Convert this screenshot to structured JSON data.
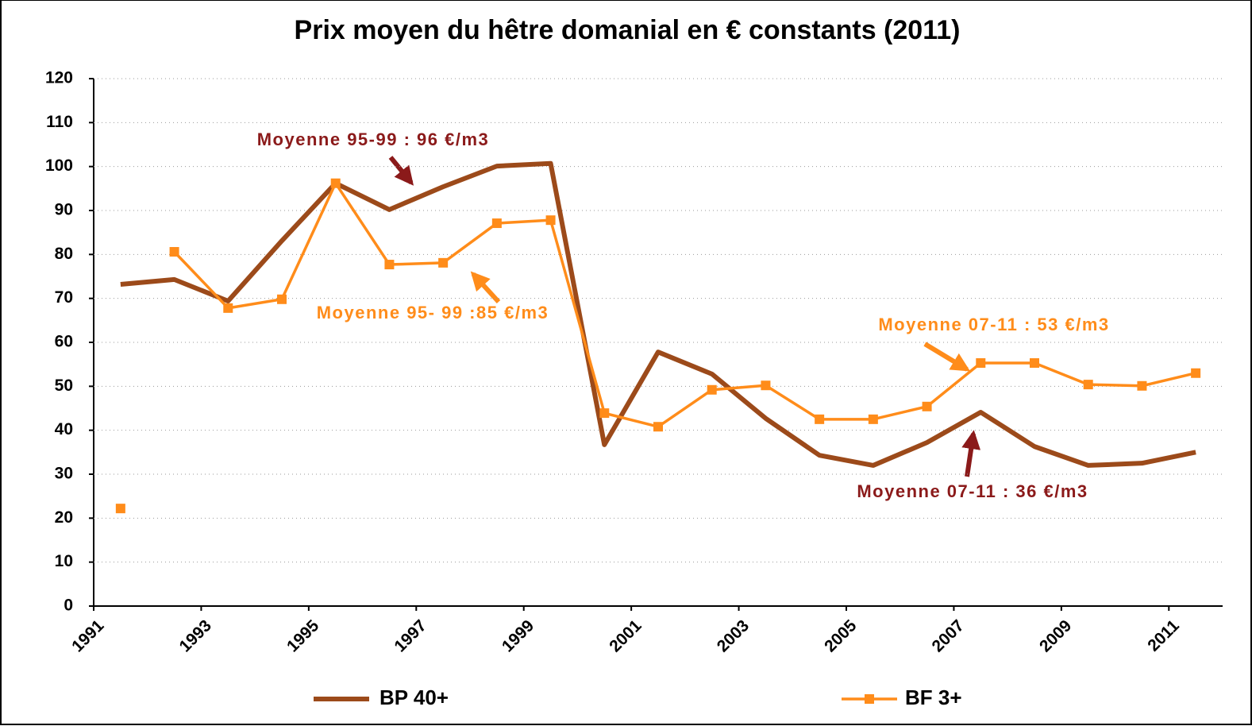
{
  "chart_data": {
    "type": "line",
    "title": "Prix moyen du hêtre domanial en € constants (2011)",
    "x": [
      1991,
      1992,
      1993,
      1994,
      1995,
      1996,
      1997,
      1998,
      1999,
      2000,
      2001,
      2002,
      2003,
      2004,
      2005,
      2006,
      2007,
      2008,
      2009,
      2010,
      2011
    ],
    "xlim": [
      1991,
      2012
    ],
    "xticks": [
      1991,
      1993,
      1995,
      1997,
      1999,
      2001,
      2003,
      2005,
      2007,
      2009,
      2011
    ],
    "ylim": [
      0,
      120
    ],
    "yticks": [
      0,
      10,
      20,
      30,
      40,
      50,
      60,
      70,
      80,
      90,
      100,
      110,
      120
    ],
    "grid": true,
    "series": [
      {
        "name": "BP 40+",
        "color": "#9c4a1a",
        "marker": false,
        "values": [
          73.2,
          74.3,
          69.4,
          83.1,
          96.2,
          90.2,
          95.4,
          100.1,
          100.7,
          36.7,
          57.8,
          52.8,
          42.7,
          34.3,
          32.0,
          37.2,
          44.1,
          36.3,
          32.0,
          32.5,
          35.0
        ]
      },
      {
        "name": "BF 3+",
        "color": "#ff8c1a",
        "marker": true,
        "line_start": 1,
        "values": [
          22.2,
          80.6,
          67.8,
          69.8,
          96.2,
          77.7,
          78.1,
          87.1,
          87.8,
          43.9,
          40.8,
          49.2,
          50.2,
          42.5,
          42.5,
          45.4,
          55.3,
          55.3,
          50.4,
          50.1,
          53.0
        ]
      }
    ],
    "annotations": [
      {
        "text": "Moyenne 95-99 : 96 €/m3",
        "color": "#8b1a1a"
      },
      {
        "text": "Moyenne 95- 99 :85 €/m3",
        "color": "#ff8c1a"
      },
      {
        "text": "Moyenne 07-11 : 53 €/m3",
        "color": "#ff8c1a"
      },
      {
        "text": "Moyenne 07-11 : 36 €/m3",
        "color": "#8b1a1a"
      }
    ]
  }
}
